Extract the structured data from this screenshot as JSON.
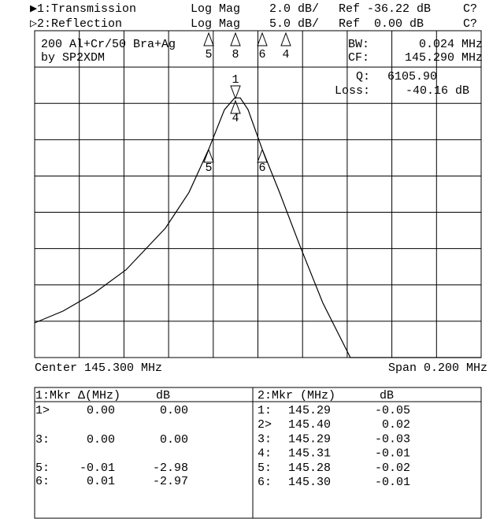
{
  "header": {
    "ch1": [
      "▶1:Transmission",
      "Log Mag",
      "2.0 dB/",
      "Ref -36.22 dB",
      "C?"
    ],
    "ch2": [
      "▷2:Reflection",
      "Log Mag",
      "5.0 dB/",
      "Ref  0.00 dB",
      "C?"
    ]
  },
  "annotations": {
    "title1": "200 Al+Cr/50 Bra+Ag",
    "title2": "by SP2XDM",
    "bw_label": "BW:",
    "bw": "0.024 MHz",
    "cf_label": "CF:",
    "cf": "145.290 MHz",
    "q_label": "Q:",
    "q": "6105.90",
    "loss_label": "Loss:",
    "loss": "-40.16 dB",
    "center": "Center 145.300 MHz",
    "span": "Span 0.200 MHz"
  },
  "markers": {
    "top": [
      "5",
      "8",
      "6",
      "4"
    ],
    "trace": [
      "1",
      "4",
      "5",
      "6"
    ]
  },
  "chart_data": {
    "type": "line",
    "xlim": [
      145.2,
      145.4
    ],
    "ylim": [
      -36.22,
      -18.22
    ],
    "xticks": [
      145.2,
      145.22,
      145.24,
      145.26,
      145.28,
      145.3,
      145.32,
      145.34,
      145.36,
      145.38,
      145.4
    ],
    "yticks": [
      -36.22,
      -34.22,
      -32.22,
      -30.22,
      -28.22,
      -26.22,
      -24.22,
      -22.22,
      -20.22,
      -18.22
    ],
    "grid": true,
    "x": [
      145.2,
      145.2127,
      145.2268,
      145.2409,
      145.2586,
      145.2691,
      145.278,
      145.285,
      145.2896,
      145.2921,
      145.2956,
      145.3019,
      145.3097,
      145.3185,
      145.3291,
      145.3414,
      145.4
    ],
    "series": [
      {
        "name": "Transmission",
        "color": "#000000",
        "values": [
          -34.31,
          -33.66,
          -32.66,
          -31.39,
          -29.09,
          -27.13,
          -24.74,
          -22.57,
          -21.92,
          -21.92,
          -22.57,
          -24.74,
          -27.13,
          -29.96,
          -33.22,
          -36.22,
          -36.22
        ]
      }
    ]
  },
  "tables": {
    "left": {
      "header": [
        "1:Mkr Δ(MHz)",
        "dB"
      ],
      "rows": [
        [
          "1>",
          "0.00",
          "0.00"
        ],
        [
          "3:",
          "0.00",
          "0.00"
        ],
        [
          "5:",
          "-0.01",
          "-2.98"
        ],
        [
          "6:",
          "0.01",
          "-2.97"
        ]
      ]
    },
    "right": {
      "header": [
        "2:Mkr (MHz)",
        "dB"
      ],
      "rows": [
        [
          "1:",
          "145.29",
          "-0.05"
        ],
        [
          "2>",
          "145.40",
          "0.02"
        ],
        [
          "3:",
          "145.29",
          "-0.03"
        ],
        [
          "4:",
          "145.31",
          "-0.01"
        ],
        [
          "5:",
          "145.28",
          "-0.02"
        ],
        [
          "6:",
          "145.30",
          "-0.01"
        ]
      ]
    }
  }
}
